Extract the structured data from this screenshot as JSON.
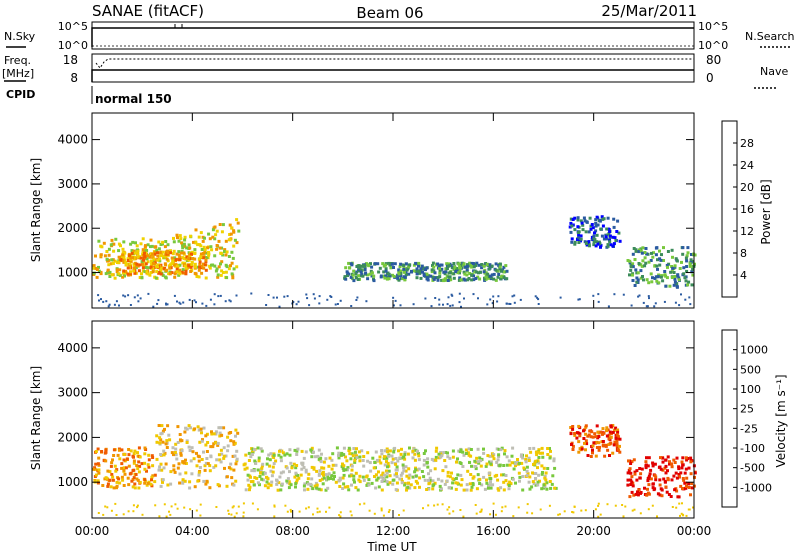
{
  "header": {
    "station": "SANAE (fitACF)",
    "beam": "Beam 06",
    "date": "25/Mar/2011"
  },
  "sky_panel": {
    "left_label": "N.Sky",
    "right_label": "N.Search",
    "left_ticks": [
      "10^5",
      "10^0"
    ],
    "right_ticks": [
      "10^5",
      "10^0"
    ]
  },
  "freq_panel": {
    "left_label_line1": "Freq.",
    "left_label_line2": "[MHz]",
    "right_label": "Nave",
    "left_ticks": [
      "18",
      "8"
    ],
    "right_ticks": [
      "80",
      "0"
    ]
  },
  "cpid": {
    "label": "CPID",
    "value": "normal 150"
  },
  "time_axis": {
    "label": "Time UT",
    "ticks": [
      "00:00",
      "04:00",
      "08:00",
      "12:00",
      "16:00",
      "20:00",
      "00:00"
    ]
  },
  "colors": {
    "power_scale": [
      "#0000ff",
      "#2a5aa0",
      "#3c8c5a",
      "#78c83c",
      "#f0d200",
      "#f09600",
      "#f05a00",
      "#e10000"
    ],
    "velocity_scale": [
      "#e10000",
      "#f05a00",
      "#f09600",
      "#f0c800",
      "#bebeb4",
      "#78c83c",
      "#3c8c5a",
      "#2a5aa0",
      "#0000ff"
    ],
    "ground_scatter": "#bebeb4"
  },
  "chart_data": [
    {
      "type": "heatmap",
      "name": "Power",
      "ylabel": "Slant Range [km]",
      "xlabel": "",
      "xlim": [
        0,
        24
      ],
      "ylim": [
        200,
        4600
      ],
      "yticks": [
        "1000",
        "2000",
        "3000",
        "4000"
      ],
      "colorbar_label": "Power [dB]",
      "colorbar_ticks": [
        "4",
        "8",
        "12",
        "16",
        "20",
        "24",
        "28"
      ],
      "regions": [
        {
          "t0": 0.0,
          "t1": 2.5,
          "r0": 900,
          "r1": 1800,
          "level": 4
        },
        {
          "t0": 2.5,
          "t1": 5.8,
          "r0": 900,
          "r1": 2300,
          "level": 4
        },
        {
          "t0": 1.0,
          "t1": 4.5,
          "r0": 1000,
          "r1": 1500,
          "level": 5
        },
        {
          "t0": 10.0,
          "t1": 16.5,
          "r0": 850,
          "r1": 1250,
          "level": 2
        },
        {
          "t0": 19.0,
          "t1": 21.0,
          "r0": 1600,
          "r1": 2300,
          "level": 1
        },
        {
          "t0": 21.3,
          "t1": 24.0,
          "r0": 700,
          "r1": 1600,
          "level": 2
        }
      ]
    },
    {
      "type": "heatmap",
      "name": "Velocity",
      "ylabel": "Slant Range [km]",
      "xlabel": "Time UT",
      "xlim": [
        0,
        24
      ],
      "ylim": [
        200,
        4600
      ],
      "yticks": [
        "1000",
        "2000",
        "3000",
        "4000"
      ],
      "colorbar_label": "Velocity [m s⁻¹]",
      "colorbar_ticks": [
        "1000",
        "500",
        "100",
        "25",
        "-25",
        "-100",
        "-500",
        "-1000"
      ],
      "regions": [
        {
          "t0": 0.0,
          "t1": 2.5,
          "r0": 900,
          "r1": 1800,
          "level": 2
        },
        {
          "t0": 2.5,
          "t1": 5.8,
          "r0": 900,
          "r1": 2300,
          "level": 3
        },
        {
          "t0": 6.0,
          "t1": 18.5,
          "r0": 850,
          "r1": 1800,
          "level": 4
        },
        {
          "t0": 19.0,
          "t1": 21.0,
          "r0": 1600,
          "r1": 2300,
          "level": 1
        },
        {
          "t0": 21.3,
          "t1": 24.0,
          "r0": 700,
          "r1": 1600,
          "level": 0
        }
      ]
    }
  ]
}
